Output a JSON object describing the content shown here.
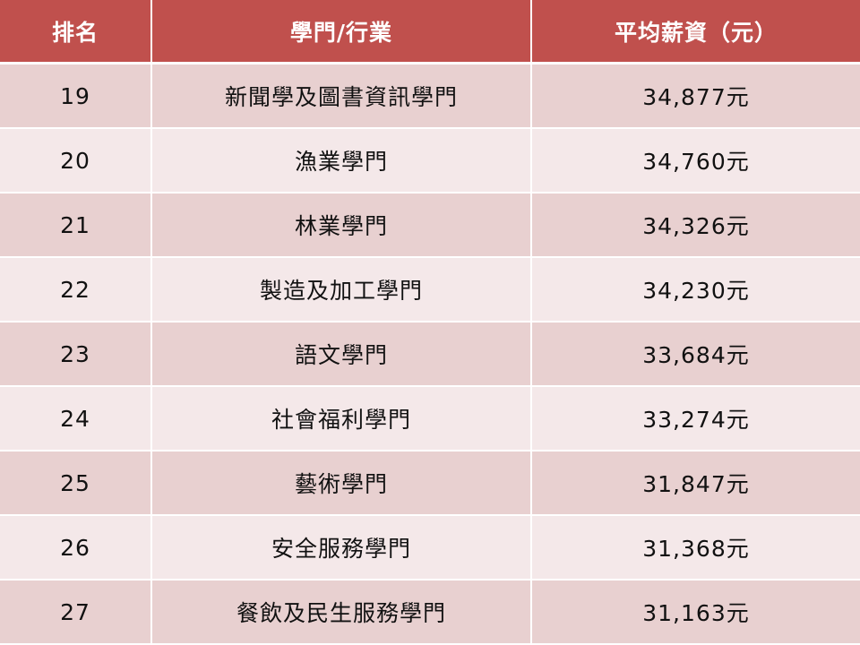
{
  "header": {
    "rank": "排名",
    "major": "學門/行業",
    "salary": "平均薪資（元）"
  },
  "colors": {
    "header_bg": "#c0504d",
    "row_dark": "#e8d0d0",
    "row_light": "#f4e8e9"
  },
  "rows": [
    {
      "rank": "19",
      "major": "新聞學及圖書資訊學門",
      "salary": "34,877元"
    },
    {
      "rank": "20",
      "major": "漁業學門",
      "salary": "34,760元"
    },
    {
      "rank": "21",
      "major": "林業學門",
      "salary": "34,326元"
    },
    {
      "rank": "22",
      "major": "製造及加工學門",
      "salary": "34,230元"
    },
    {
      "rank": "23",
      "major": "語文學門",
      "salary": "33,684元"
    },
    {
      "rank": "24",
      "major": "社會福利學門",
      "salary": "33,274元"
    },
    {
      "rank": "25",
      "major": "藝術學門",
      "salary": "31,847元"
    },
    {
      "rank": "26",
      "major": "安全服務學門",
      "salary": "31,368元"
    },
    {
      "rank": "27",
      "major": "餐飲及民生服務學門",
      "salary": "31,163元"
    }
  ]
}
